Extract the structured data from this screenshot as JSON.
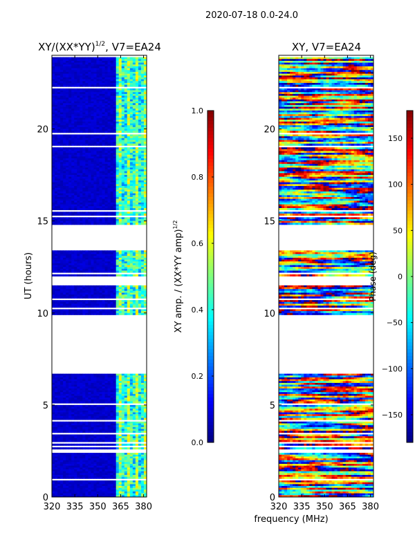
{
  "figure": {
    "suptitle": "2020-07-18 0.0-24.0",
    "xlabel_shared": "frequency (MHz)"
  },
  "chart_data": [
    {
      "type": "heatmap",
      "title": "XY/(XX*YY)^1/2, V7=EA24",
      "title_main": "XY/(XX*YY)",
      "title_exp": "1/2",
      "title_suffix": ", V7=EA24",
      "xlabel": "frequency (MHz)",
      "ylabel": "UT (hours)",
      "xlim": [
        320,
        382
      ],
      "ylim": [
        0,
        24
      ],
      "xticks": [
        320,
        335,
        350,
        365,
        380
      ],
      "yticks": [
        0,
        5,
        10,
        15,
        20
      ],
      "colormap": "jet",
      "colorbar": {
        "label_main": "XY amp. / (XX*YY amp)",
        "label_exp": "1/2",
        "range": [
          0.0,
          1.0
        ],
        "ticks": [
          "0.0",
          "0.2",
          "0.4",
          "0.6",
          "0.8",
          "1.0"
        ]
      },
      "data_gaps_hours": [
        [
          6.7,
          9.9
        ],
        [
          11.5,
          12.0
        ],
        [
          13.6,
          14.8
        ]
      ],
      "dominant_values": {
        "below_362MHz": 0.05,
        "above_362MHz": 0.35
      }
    },
    {
      "type": "heatmap",
      "title": "XY, V7=EA24",
      "xlabel": "frequency (MHz)",
      "ylabel": "",
      "xlim": [
        320,
        382
      ],
      "ylim": [
        0,
        24
      ],
      "xticks": [
        320,
        335,
        350,
        365,
        380
      ],
      "yticks": [
        0,
        5,
        10,
        15,
        20
      ],
      "colormap": "jet",
      "colorbar": {
        "label": "Phase (deg)",
        "range": [
          -180,
          180
        ],
        "ticks": [
          "−150",
          "−100",
          "−50",
          "0",
          "50",
          "100",
          "150"
        ]
      },
      "data_gaps_hours": [
        [
          6.7,
          9.9
        ],
        [
          11.5,
          12.0
        ],
        [
          13.6,
          14.8
        ]
      ]
    }
  ]
}
